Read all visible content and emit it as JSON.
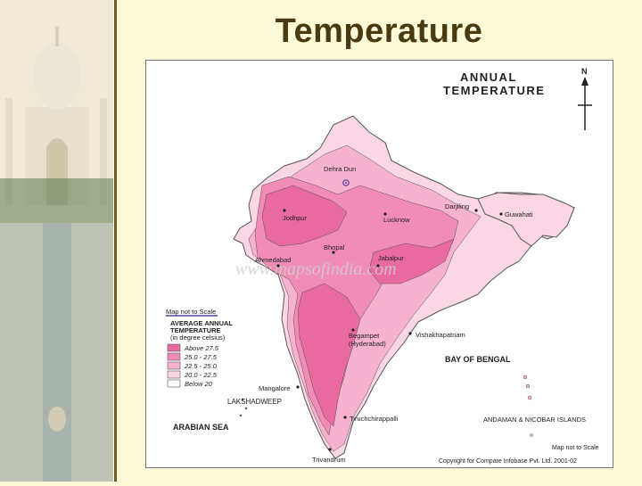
{
  "slide": {
    "title": "Temperature"
  },
  "map": {
    "heading_line1": "ANNUAL",
    "heading_line2": "TEMPERATURE",
    "north_label": "N",
    "scale_note_left": "Map not to Scale",
    "scale_note_right": "Map not to Scale",
    "watermark": "www.mapsofindia.com",
    "copyright": "Copyright for Compare Infobase Pvt. Ltd. 2001-02",
    "colors": {
      "above_27_5": "#e86aa0",
      "r25_27_5": "#f08cb6",
      "r22_5_25": "#f6b2cf",
      "r20_22_5": "#fbd6e5",
      "below_20": "#ffffff",
      "outline": "#555555",
      "water_label": "#222222"
    },
    "legend": {
      "title_line1": "AVERAGE ANNUAL",
      "title_line2": "TEMPERATURE",
      "unit": "(in degree celsius)",
      "items": [
        {
          "label": "Above 27.5",
          "color": "#e86aa0"
        },
        {
          "label": "25.0 - 27.5",
          "color": "#f08cb6"
        },
        {
          "label": "22.5 - 25.0",
          "color": "#f6b2cf"
        },
        {
          "label": "20.0 - 22.5",
          "color": "#fbd6e5"
        },
        {
          "label": "Below 20",
          "color": "#ffffff"
        }
      ]
    },
    "cities": {
      "dehra_dun": "Dehra Dun",
      "darjiling": "Darjiling",
      "guwahati": "Guwahati",
      "jodhpur": "Jodhpur",
      "lucknow": "Lucknow",
      "bhopal": "Bhopal",
      "jabalpur": "Jabalpur",
      "ahmedabad": "Ahmedabad",
      "begampet": "Begampet",
      "hyderabad": "(Hyderabad)",
      "vishakhapatnam": "Vishakhapatnam",
      "mangalore": "Mangalore",
      "tiruchchirappalli": "Tiruchchirappalli",
      "trivandrum": "Trivandrum"
    },
    "regions": {
      "lakshadweep": "LAKSHADWEEP",
      "arabian_sea": "ARABIAN SEA",
      "bay_of_bengal": "BAY OF BENGAL",
      "andaman": "ANDAMAN & NICOBAR ISLANDS"
    }
  }
}
